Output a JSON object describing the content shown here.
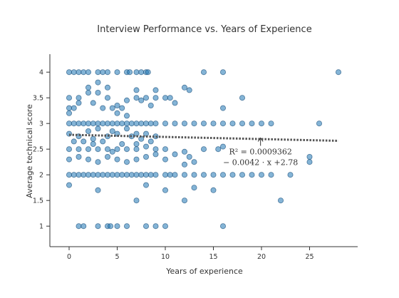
{
  "chart_data": {
    "type": "scatter",
    "title": "Interview Performance vs. Years of Experience",
    "xlabel": "Years of experience",
    "ylabel": "Average technical score",
    "xlim": [
      -2,
      30
    ],
    "ylim": [
      0.6,
      4.35
    ],
    "xticks": [
      0,
      5,
      10,
      15,
      20,
      25
    ],
    "yticks": [
      1,
      1.5,
      2,
      2.5,
      3,
      3.5,
      4
    ],
    "ytick_labels": [
      "1",
      "1.5",
      "2",
      "2.5",
      "3",
      "3.5",
      "4"
    ],
    "grid": false,
    "marker_color": "#1f77b4",
    "trend_color": "#555555",
    "trendline": {
      "slope": -0.0042,
      "intercept": 2.78,
      "x_range": [
        0,
        28
      ]
    },
    "annotation": {
      "lines": [
        "R² = 0.0009362",
        "− 0.0042 · x +2.78"
      ],
      "arrow_x": 19.9,
      "arrow_y": 2.76
    },
    "points": [
      [
        0,
        4
      ],
      [
        0.5,
        4
      ],
      [
        1,
        4
      ],
      [
        1.5,
        4
      ],
      [
        2,
        4
      ],
      [
        3,
        4
      ],
      [
        3.5,
        4
      ],
      [
        4,
        4
      ],
      [
        5,
        4
      ],
      [
        6,
        4
      ],
      [
        6.3,
        4
      ],
      [
        7,
        4
      ],
      [
        7.5,
        4
      ],
      [
        8,
        4
      ],
      [
        8.2,
        4
      ],
      [
        14,
        4
      ],
      [
        16,
        4
      ],
      [
        28,
        4
      ],
      [
        0,
        3.5
      ],
      [
        0,
        3.3
      ],
      [
        0,
        3.2
      ],
      [
        0.5,
        3.3
      ],
      [
        1,
        3.5
      ],
      [
        1,
        3.4
      ],
      [
        2,
        3.7
      ],
      [
        2,
        3.6
      ],
      [
        2.5,
        3.4
      ],
      [
        3,
        3.8
      ],
      [
        3,
        3.6
      ],
      [
        3.5,
        3.3
      ],
      [
        4,
        3.7
      ],
      [
        4,
        3.5
      ],
      [
        4.5,
        3.3
      ],
      [
        5,
        3.35
      ],
      [
        5.5,
        3.3
      ],
      [
        5,
        3.2
      ],
      [
        6,
        3.45
      ],
      [
        6,
        3.15
      ],
      [
        7,
        3.65
      ],
      [
        7,
        3.5
      ],
      [
        7.5,
        3.45
      ],
      [
        8,
        3.5
      ],
      [
        8.5,
        3.35
      ],
      [
        9,
        3.5
      ],
      [
        9,
        3.65
      ],
      [
        10,
        3.5
      ],
      [
        10.5,
        3.5
      ],
      [
        11,
        3.4
      ],
      [
        12,
        3.7
      ],
      [
        12.5,
        3.65
      ],
      [
        16,
        3.3
      ],
      [
        18,
        3.5
      ],
      [
        0,
        3
      ],
      [
        0.5,
        3
      ],
      [
        1,
        3
      ],
      [
        1.5,
        3
      ],
      [
        2,
        3
      ],
      [
        2.5,
        3
      ],
      [
        3,
        3
      ],
      [
        3.5,
        3
      ],
      [
        4,
        3
      ],
      [
        4.5,
        3
      ],
      [
        5,
        3
      ],
      [
        5.5,
        3
      ],
      [
        6,
        3
      ],
      [
        6.5,
        3
      ],
      [
        7,
        3
      ],
      [
        7.5,
        3
      ],
      [
        8,
        3
      ],
      [
        8.5,
        3
      ],
      [
        9,
        3
      ],
      [
        10,
        3
      ],
      [
        11,
        3
      ],
      [
        12,
        3
      ],
      [
        13,
        3
      ],
      [
        14,
        3
      ],
      [
        15,
        3
      ],
      [
        16,
        3
      ],
      [
        17,
        3
      ],
      [
        18,
        3
      ],
      [
        19,
        3
      ],
      [
        20,
        3
      ],
      [
        21,
        3
      ],
      [
        26,
        3
      ],
      [
        0,
        2.8
      ],
      [
        1,
        2.75
      ],
      [
        2,
        2.85
      ],
      [
        2.5,
        2.7
      ],
      [
        3,
        2.9
      ],
      [
        4,
        2.75
      ],
      [
        4.5,
        2.85
      ],
      [
        5,
        2.8
      ],
      [
        6,
        2.9
      ],
      [
        6.5,
        2.75
      ],
      [
        7,
        2.8
      ],
      [
        7.5,
        2.7
      ],
      [
        8,
        2.8
      ],
      [
        8.5,
        2.65
      ],
      [
        9,
        2.75
      ],
      [
        0.5,
        2.65
      ],
      [
        1.5,
        2.65
      ],
      [
        3.5,
        2.65
      ],
      [
        5.5,
        2.6
      ],
      [
        7,
        2.6
      ],
      [
        0,
        2.5
      ],
      [
        1,
        2.5
      ],
      [
        2,
        2.5
      ],
      [
        2.5,
        2.6
      ],
      [
        3,
        2.5
      ],
      [
        4,
        2.5
      ],
      [
        4.5,
        2.45
      ],
      [
        5,
        2.5
      ],
      [
        6,
        2.5
      ],
      [
        7,
        2.5
      ],
      [
        8,
        2.55
      ],
      [
        9,
        2.5
      ],
      [
        10,
        2.5
      ],
      [
        11,
        2.4
      ],
      [
        12,
        2.45
      ],
      [
        12.5,
        2.35
      ],
      [
        14,
        2.5
      ],
      [
        15.5,
        2.5
      ],
      [
        16,
        2.55
      ],
      [
        25,
        2.35
      ],
      [
        25,
        2.25
      ],
      [
        0,
        2.3
      ],
      [
        1,
        2.35
      ],
      [
        2,
        2.3
      ],
      [
        3,
        2.25
      ],
      [
        4,
        2.35
      ],
      [
        5,
        2.3
      ],
      [
        6,
        2.25
      ],
      [
        7,
        2.3
      ],
      [
        8,
        2.35
      ],
      [
        9,
        2.4
      ],
      [
        10,
        2.3
      ],
      [
        12,
        2.2
      ],
      [
        13,
        2.25
      ],
      [
        0,
        2
      ],
      [
        0.5,
        2
      ],
      [
        1,
        2
      ],
      [
        1.5,
        2
      ],
      [
        2,
        2
      ],
      [
        2.5,
        2
      ],
      [
        3,
        2
      ],
      [
        3.5,
        2
      ],
      [
        4,
        2
      ],
      [
        4.5,
        2
      ],
      [
        5,
        2
      ],
      [
        5.5,
        2
      ],
      [
        6,
        2
      ],
      [
        6.5,
        2
      ],
      [
        7,
        2
      ],
      [
        7.5,
        2
      ],
      [
        8,
        2
      ],
      [
        8.5,
        2
      ],
      [
        9,
        2
      ],
      [
        10,
        2
      ],
      [
        10.5,
        2
      ],
      [
        11,
        2
      ],
      [
        12,
        2
      ],
      [
        13,
        2
      ],
      [
        14,
        2
      ],
      [
        15,
        2
      ],
      [
        16,
        2
      ],
      [
        17,
        2
      ],
      [
        18,
        2
      ],
      [
        19,
        2
      ],
      [
        20,
        2
      ],
      [
        21,
        2
      ],
      [
        23,
        2
      ],
      [
        0,
        1.8
      ],
      [
        8,
        1.8
      ],
      [
        10,
        1.7
      ],
      [
        13,
        1.75
      ],
      [
        3,
        1.7
      ],
      [
        12,
        1.5
      ],
      [
        7,
        1.5
      ],
      [
        15,
        1.7
      ],
      [
        22,
        1.5
      ],
      [
        1,
        1
      ],
      [
        1.5,
        1
      ],
      [
        3,
        1
      ],
      [
        4,
        1
      ],
      [
        4.3,
        1
      ],
      [
        5,
        1
      ],
      [
        6,
        1
      ],
      [
        8,
        1
      ],
      [
        9,
        1
      ],
      [
        10,
        1
      ],
      [
        16,
        1
      ]
    ]
  }
}
